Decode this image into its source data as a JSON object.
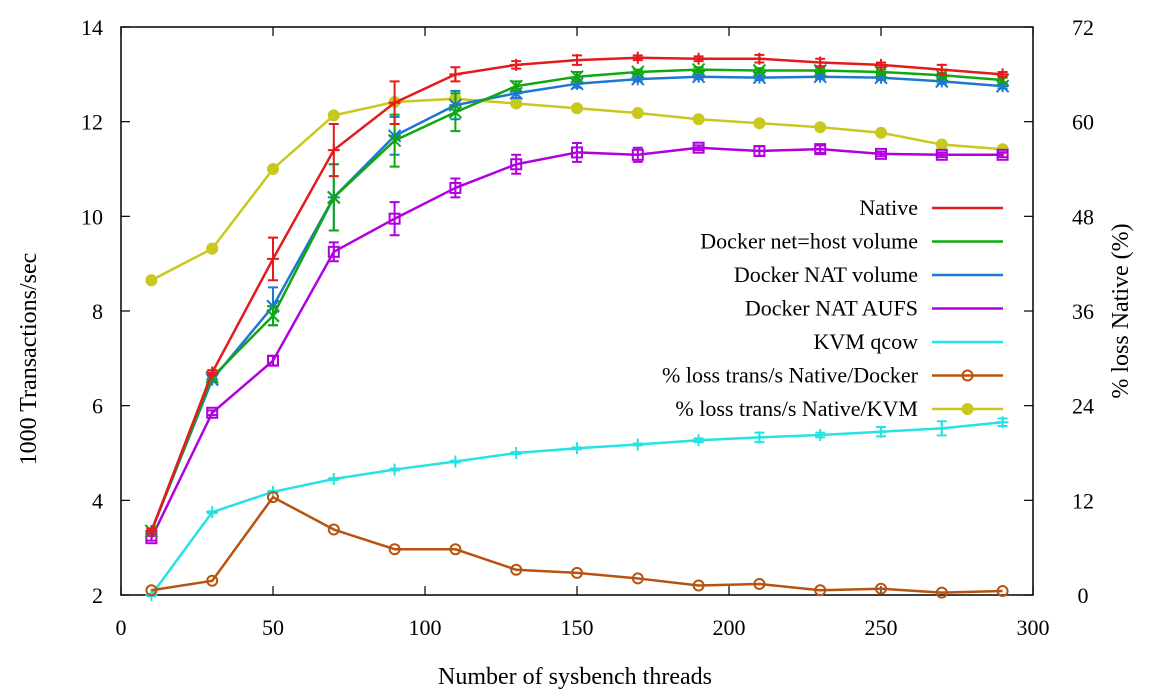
{
  "chart_data": {
    "type": "line",
    "xlabel": "Number of sysbench threads",
    "ylabel": "1000 Transactions/sec",
    "y2label": "% loss Native (%)",
    "xlim": [
      0,
      300
    ],
    "ylim": [
      2,
      14
    ],
    "y2lim": [
      0,
      72
    ],
    "xticks": [
      0,
      50,
      100,
      150,
      200,
      250,
      300
    ],
    "yticks": [
      2,
      4,
      6,
      8,
      10,
      12,
      14
    ],
    "y2ticks": [
      0,
      12,
      24,
      36,
      48,
      60,
      72
    ],
    "grid": false,
    "legend_position": "right",
    "x": [
      10,
      30,
      50,
      70,
      90,
      110,
      130,
      150,
      170,
      190,
      210,
      230,
      250,
      270,
      290
    ],
    "series": [
      {
        "name": "Native",
        "axis": "left",
        "color": "#e41a1c",
        "marker": "plus",
        "values": [
          3.35,
          6.7,
          9.1,
          11.4,
          12.4,
          13.0,
          13.2,
          13.3,
          13.35,
          13.33,
          13.33,
          13.25,
          13.2,
          13.1,
          13.0
        ],
        "errors": [
          0.05,
          0.05,
          0.45,
          0.55,
          0.45,
          0.15,
          0.08,
          0.1,
          0.05,
          0.05,
          0.08,
          0.08,
          0.05,
          0.1,
          0.05
        ]
      },
      {
        "name": "Docker net=host volume",
        "axis": "left",
        "color": "#0fa80f",
        "marker": "x",
        "values": [
          3.35,
          6.6,
          7.9,
          10.4,
          11.6,
          12.2,
          12.75,
          12.95,
          13.05,
          13.1,
          13.08,
          13.08,
          13.05,
          12.98,
          12.88
        ],
        "errors": [
          0.05,
          0.05,
          0.2,
          0.7,
          0.55,
          0.4,
          0.1,
          0.1,
          0.05,
          0.05,
          0.05,
          0.05,
          0.05,
          0.05,
          0.05
        ]
      },
      {
        "name": "Docker NAT volume",
        "axis": "left",
        "color": "#1e78d2",
        "marker": "star",
        "values": [
          3.35,
          6.55,
          8.1,
          10.4,
          11.7,
          12.35,
          12.6,
          12.8,
          12.9,
          12.95,
          12.93,
          12.95,
          12.93,
          12.85,
          12.75
        ],
        "errors": [
          0.05,
          0.05,
          0.4,
          0.7,
          0.4,
          0.3,
          0.1,
          0.08,
          0.05,
          0.05,
          0.05,
          0.05,
          0.05,
          0.05,
          0.05
        ]
      },
      {
        "name": "Docker NAT AUFS",
        "axis": "left",
        "color": "#b100e0",
        "marker": "square",
        "values": [
          3.2,
          5.85,
          6.95,
          9.25,
          9.95,
          10.6,
          11.1,
          11.35,
          11.3,
          11.45,
          11.38,
          11.42,
          11.32,
          11.3,
          11.3
        ],
        "errors": [
          0.05,
          0.05,
          0.1,
          0.2,
          0.35,
          0.2,
          0.2,
          0.2,
          0.15,
          0.05,
          0.1,
          0.08,
          0.05,
          0.05,
          0.05
        ]
      },
      {
        "name": "KVM qcow",
        "axis": "left",
        "color": "#26e2e2",
        "marker": "cross",
        "values": [
          2.0,
          3.75,
          4.18,
          4.45,
          4.65,
          4.82,
          5.0,
          5.1,
          5.18,
          5.27,
          5.33,
          5.38,
          5.45,
          5.52,
          5.65
        ],
        "errors": [
          0.02,
          0.02,
          0.02,
          0.02,
          0.02,
          0.02,
          0.02,
          0.02,
          0.02,
          0.04,
          0.1,
          0.05,
          0.1,
          0.15,
          0.08
        ]
      },
      {
        "name": "% loss trans/s Native/Docker",
        "axis": "right",
        "color": "#b8520f",
        "marker": "circle",
        "values": [
          0.6,
          1.8,
          12.4,
          8.3,
          5.8,
          5.8,
          3.2,
          2.8,
          2.1,
          1.2,
          1.4,
          0.6,
          0.8,
          0.3,
          0.5
        ]
      },
      {
        "name": "% loss trans/s Native/KVM",
        "axis": "right",
        "color": "#c8c81e",
        "marker": "filled-circle",
        "values": [
          39.9,
          43.9,
          54.0,
          60.8,
          62.5,
          62.9,
          62.3,
          61.7,
          61.1,
          60.3,
          59.8,
          59.3,
          58.6,
          57.1,
          56.5
        ]
      }
    ]
  }
}
